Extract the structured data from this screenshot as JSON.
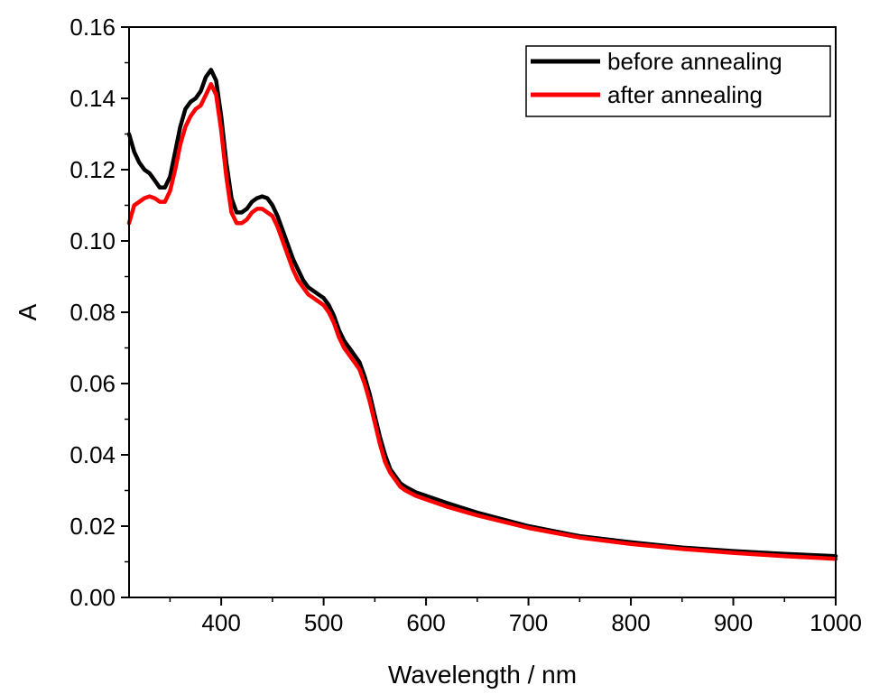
{
  "chart_data": {
    "type": "line",
    "title": "",
    "xlabel": "Wavelength / nm",
    "ylabel": "A",
    "xlim": [
      310,
      1000
    ],
    "ylim": [
      0.0,
      0.16
    ],
    "x_ticks": [
      400,
      500,
      600,
      700,
      800,
      900,
      1000
    ],
    "x_tick_labels": [
      "400",
      "500",
      "600",
      "700",
      "800",
      "900",
      "1000"
    ],
    "y_ticks": [
      0.0,
      0.02,
      0.04,
      0.06,
      0.08,
      0.1,
      0.12,
      0.14,
      0.16
    ],
    "y_tick_labels": [
      "0.00",
      "0.02",
      "0.04",
      "0.06",
      "0.08",
      "0.10",
      "0.12",
      "0.14",
      "0.16"
    ],
    "grid": false,
    "legend_position": "top-right",
    "series": [
      {
        "name": "before annealing",
        "color": "#000000",
        "x": [
          310,
          315,
          320,
          325,
          330,
          335,
          340,
          345,
          350,
          355,
          360,
          365,
          370,
          375,
          380,
          385,
          390,
          395,
          400,
          405,
          410,
          415,
          420,
          425,
          430,
          435,
          440,
          445,
          450,
          455,
          460,
          465,
          470,
          475,
          480,
          485,
          490,
          495,
          500,
          505,
          510,
          515,
          520,
          525,
          530,
          535,
          540,
          545,
          550,
          555,
          560,
          565,
          570,
          575,
          580,
          590,
          600,
          620,
          650,
          700,
          750,
          800,
          850,
          900,
          950,
          1000
        ],
        "y": [
          0.13,
          0.125,
          0.122,
          0.12,
          0.119,
          0.117,
          0.115,
          0.115,
          0.118,
          0.125,
          0.132,
          0.137,
          0.139,
          0.14,
          0.142,
          0.146,
          0.148,
          0.145,
          0.135,
          0.122,
          0.112,
          0.108,
          0.108,
          0.109,
          0.111,
          0.112,
          0.1125,
          0.112,
          0.11,
          0.107,
          0.103,
          0.099,
          0.095,
          0.092,
          0.089,
          0.087,
          0.086,
          0.085,
          0.084,
          0.082,
          0.079,
          0.075,
          0.072,
          0.07,
          0.068,
          0.066,
          0.062,
          0.057,
          0.051,
          0.045,
          0.04,
          0.036,
          0.034,
          0.032,
          0.031,
          0.0295,
          0.0285,
          0.0265,
          0.0238,
          0.02,
          0.0172,
          0.0155,
          0.014,
          0.013,
          0.0122,
          0.0116
        ]
      },
      {
        "name": "after annealing",
        "color": "#ff0000",
        "x": [
          310,
          315,
          320,
          325,
          330,
          335,
          340,
          345,
          350,
          355,
          360,
          365,
          370,
          375,
          380,
          385,
          390,
          395,
          400,
          405,
          410,
          415,
          420,
          425,
          430,
          435,
          440,
          445,
          450,
          455,
          460,
          465,
          470,
          475,
          480,
          485,
          490,
          495,
          500,
          505,
          510,
          515,
          520,
          525,
          530,
          535,
          540,
          545,
          550,
          555,
          560,
          565,
          570,
          575,
          580,
          590,
          600,
          620,
          650,
          700,
          750,
          800,
          850,
          900,
          950,
          1000
        ],
        "y": [
          0.105,
          0.11,
          0.111,
          0.112,
          0.1125,
          0.112,
          0.111,
          0.111,
          0.114,
          0.12,
          0.127,
          0.132,
          0.135,
          0.137,
          0.138,
          0.141,
          0.144,
          0.141,
          0.131,
          0.118,
          0.108,
          0.105,
          0.105,
          0.106,
          0.108,
          0.109,
          0.109,
          0.108,
          0.107,
          0.104,
          0.1,
          0.096,
          0.092,
          0.089,
          0.087,
          0.085,
          0.084,
          0.083,
          0.082,
          0.08,
          0.077,
          0.073,
          0.07,
          0.068,
          0.066,
          0.064,
          0.06,
          0.055,
          0.049,
          0.043,
          0.038,
          0.035,
          0.033,
          0.031,
          0.03,
          0.0285,
          0.0275,
          0.0255,
          0.023,
          0.0195,
          0.0168,
          0.015,
          0.0136,
          0.0125,
          0.0116,
          0.0108
        ]
      }
    ]
  }
}
